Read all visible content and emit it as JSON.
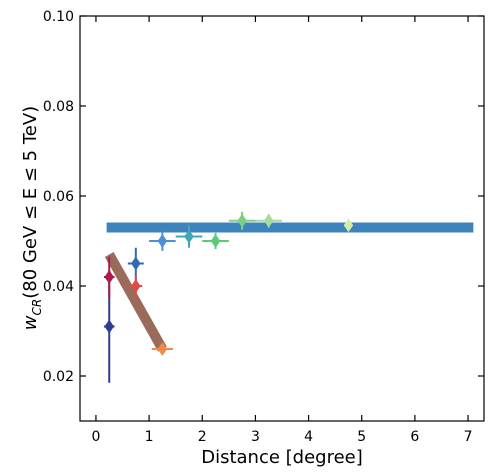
{
  "chart_data": {
    "type": "scatter",
    "xlabel": "Distance [degree]",
    "ylabel_main": "w",
    "ylabel_sub": "CR",
    "ylabel_rest": "(80 GeV ≤ E ≤ 5 TeV)",
    "xlim": [
      -0.3,
      7.3
    ],
    "ylim": [
      0.01,
      0.1
    ],
    "x_ticks": [
      0,
      1,
      2,
      3,
      4,
      5,
      6,
      7
    ],
    "x_tick_labels": [
      "0",
      "1",
      "2",
      "3",
      "4",
      "5",
      "6",
      "7"
    ],
    "y_ticks": [
      0.02,
      0.04,
      0.06,
      0.08,
      0.1
    ],
    "y_tick_labels": [
      "0.02",
      "0.04",
      "0.06",
      "0.08",
      "0.10"
    ],
    "grid": false,
    "points": [
      {
        "x": 0.25,
        "y": 0.031,
        "xerr": 0.1,
        "yerr": 0.0125,
        "color": "#2f3c8f"
      },
      {
        "x": 0.25,
        "y": 0.042,
        "xerr": 0.1,
        "yerr": 0.0045,
        "color": "#b0174a"
      },
      {
        "x": 0.75,
        "y": 0.045,
        "xerr": 0.15,
        "yerr": 0.0035,
        "color": "#2f6bb5"
      },
      {
        "x": 0.75,
        "y": 0.04,
        "xerr": 0.12,
        "yerr": 0.0025,
        "color": "#de4c48"
      },
      {
        "x": 1.25,
        "y": 0.026,
        "xerr": 0.2,
        "yerr": 0.0012,
        "color": "#f08a4b"
      },
      {
        "x": 1.25,
        "y": 0.05,
        "xerr": 0.25,
        "yerr": 0.0022,
        "color": "#4b8fd6"
      },
      {
        "x": 1.75,
        "y": 0.051,
        "xerr": 0.25,
        "yerr": 0.0025,
        "color": "#3ea7b8"
      },
      {
        "x": 2.25,
        "y": 0.05,
        "xerr": 0.25,
        "yerr": 0.0018,
        "color": "#5cc878"
      },
      {
        "x": 2.75,
        "y": 0.0545,
        "xerr": 0.25,
        "yerr": 0.002,
        "color": "#7bd083"
      },
      {
        "x": 3.25,
        "y": 0.0545,
        "xerr": 0.25,
        "yerr": 0.0015,
        "color": "#a8da9c"
      },
      {
        "x": 4.75,
        "y": 0.0535,
        "xerr": 0.02,
        "yerr": 0.0008,
        "color": "#d6ecac"
      }
    ],
    "fit_lines": [
      {
        "x": [
          0.2,
          7.1
        ],
        "y": [
          0.053,
          0.053
        ],
        "color": "#3d84bd"
      },
      {
        "x": [
          0.25,
          1.25
        ],
        "y": [
          0.047,
          0.026
        ],
        "color": "#9a6a5b"
      }
    ]
  }
}
